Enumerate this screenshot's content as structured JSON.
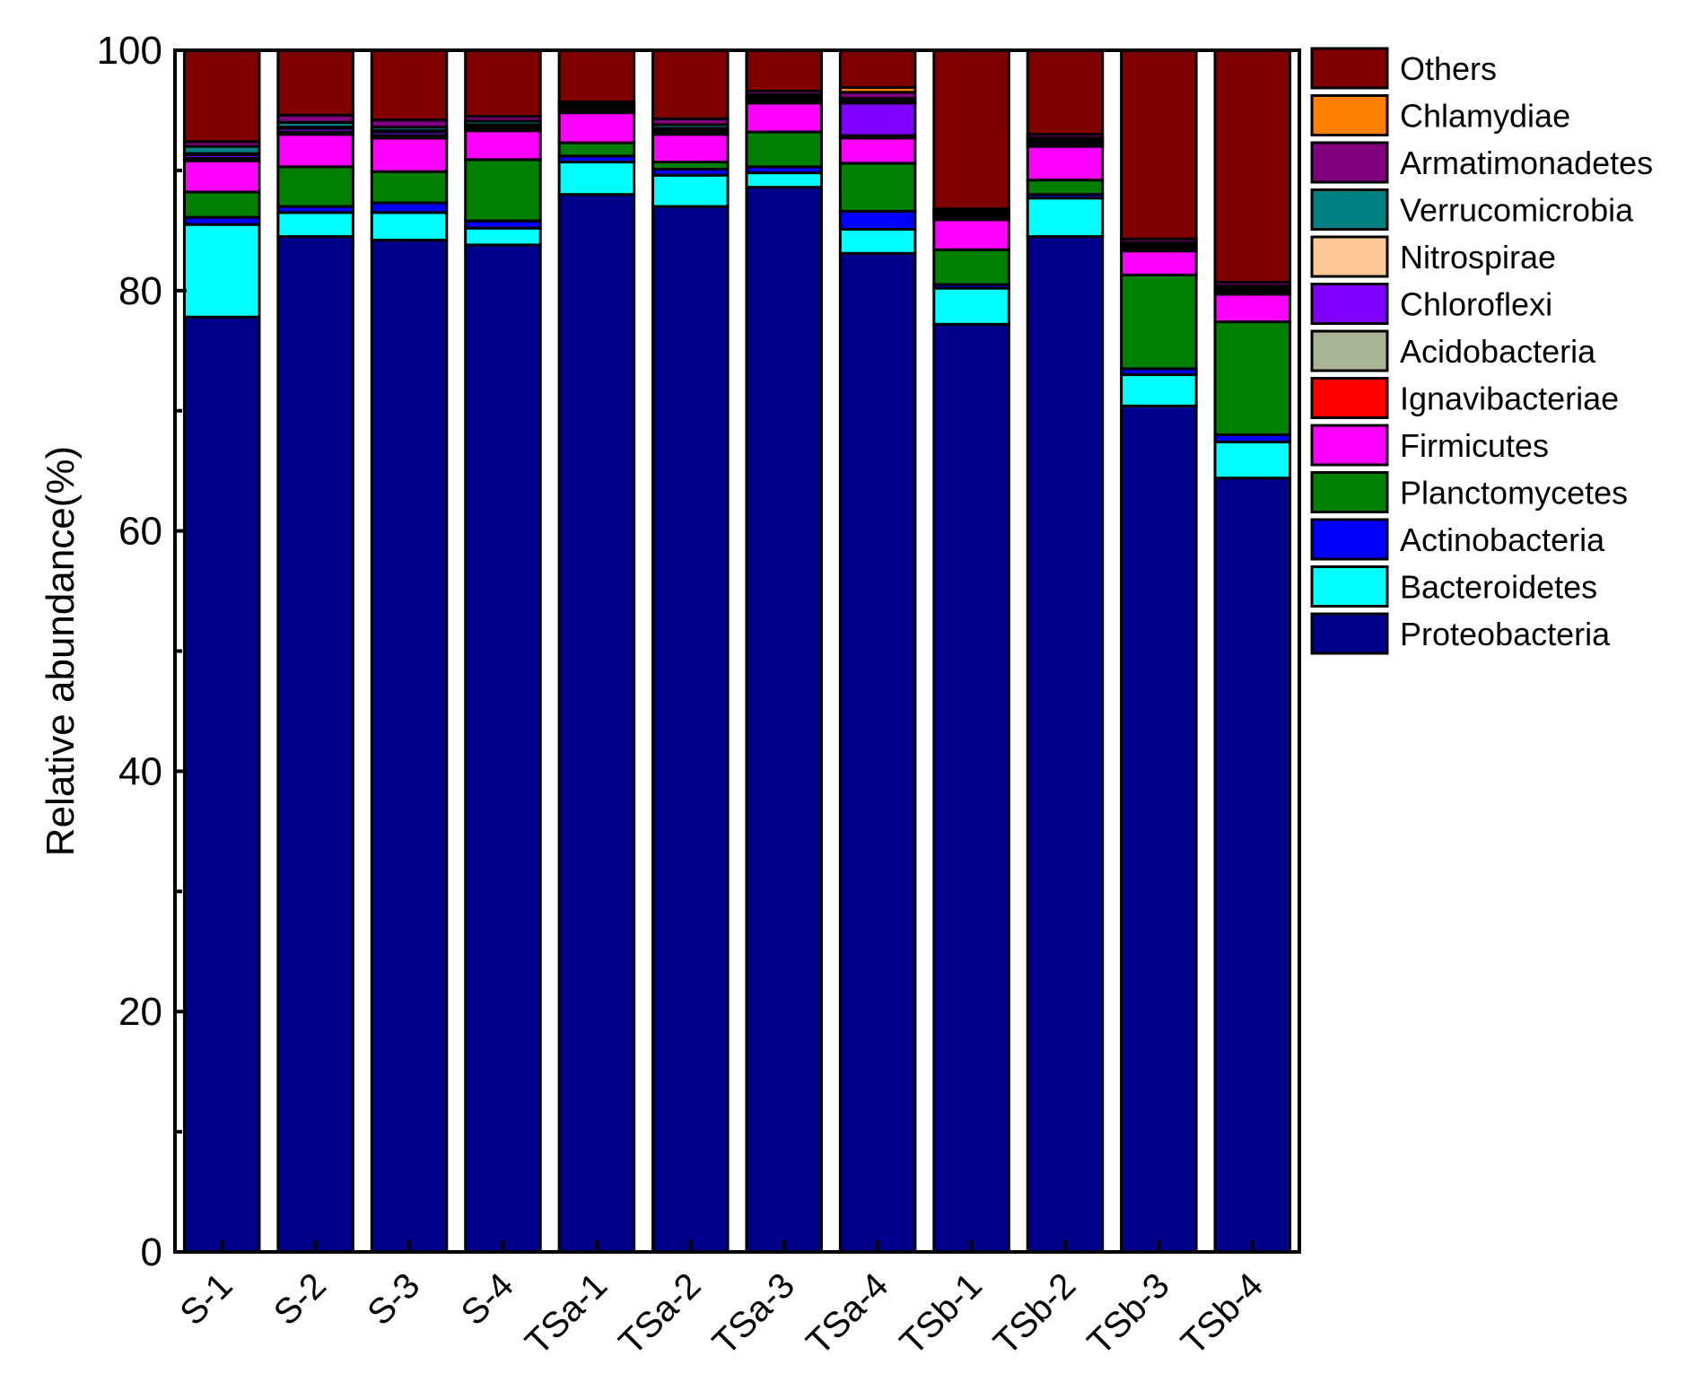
{
  "chart_data": {
    "type": "stacked-bar",
    "title": "",
    "xlabel": "",
    "ylabel": "Relative abundance(%)",
    "ylim": [
      0,
      100
    ],
    "yticks": [
      0,
      20,
      40,
      60,
      80,
      100
    ],
    "grid": false,
    "legend_position": "right",
    "categories": [
      "S-1",
      "S-2",
      "S-3",
      "S-4",
      "TSa-1",
      "TSa-2",
      "TSa-3",
      "TSa-4",
      "TSb-1",
      "TSb-2",
      "TSb-3",
      "TSb-4"
    ],
    "series": [
      {
        "name": "Proteobacteria",
        "color": "#00008B",
        "values": [
          77.8,
          84.5,
          84.2,
          83.8,
          88.0,
          87.0,
          88.6,
          83.1,
          77.2,
          84.5,
          70.4,
          64.4
        ]
      },
      {
        "name": "Bacteroidetes",
        "color": "#00FFFF",
        "values": [
          7.7,
          2.0,
          2.3,
          1.4,
          2.7,
          2.6,
          1.2,
          2.0,
          3.0,
          3.2,
          2.6,
          3.0
        ]
      },
      {
        "name": "Actinobacteria",
        "color": "#0000FF",
        "values": [
          0.6,
          0.5,
          0.8,
          0.6,
          0.5,
          0.5,
          0.5,
          1.5,
          0.3,
          0.3,
          0.5,
          0.6
        ]
      },
      {
        "name": "Planctomycetes",
        "color": "#008000",
        "values": [
          2.1,
          3.3,
          2.6,
          5.1,
          1.1,
          0.6,
          2.9,
          4.0,
          2.9,
          1.2,
          7.8,
          9.4
        ]
      },
      {
        "name": "Firmicutes",
        "color": "#FF00FF",
        "values": [
          2.6,
          2.7,
          2.8,
          2.4,
          2.5,
          2.3,
          2.4,
          2.1,
          2.5,
          2.8,
          2.0,
          2.3
        ]
      },
      {
        "name": "Ignavibacteriae",
        "color": "#FF0000",
        "values": [
          0,
          0,
          0,
          0,
          0,
          0,
          0,
          0,
          0,
          0,
          0,
          0
        ]
      },
      {
        "name": "Acidobacteria",
        "color": "#A9B596",
        "values": [
          0.2,
          0.2,
          0.2,
          0.2,
          0.2,
          0.2,
          0.2,
          0.2,
          0.2,
          0.2,
          0.2,
          0.2
        ]
      },
      {
        "name": "Chloroflexi",
        "color": "#8000FF",
        "values": [
          0.3,
          0.3,
          0.3,
          0.2,
          0.2,
          0.2,
          0.2,
          2.7,
          0.2,
          0.2,
          0.2,
          0.2
        ]
      },
      {
        "name": "Nitrospirae",
        "color": "#FFC896",
        "values": [
          0.1,
          0.1,
          0.1,
          0.1,
          0.1,
          0.1,
          0.1,
          0.2,
          0.1,
          0.1,
          0.1,
          0.1
        ]
      },
      {
        "name": "Verrucomicrobia",
        "color": "#008080",
        "values": [
          0.6,
          0.4,
          0.3,
          0.3,
          0.2,
          0.3,
          0.2,
          0.2,
          0.2,
          0.2,
          0.2,
          0.2
        ]
      },
      {
        "name": "Armatimonadetes",
        "color": "#800080",
        "values": [
          0.4,
          0.6,
          0.6,
          0.4,
          0.2,
          0.5,
          0.3,
          0.5,
          0.2,
          0.3,
          0.3,
          0.3
        ]
      },
      {
        "name": "Chlamydiae",
        "color": "#FF8000",
        "values": [
          0,
          0,
          0,
          0,
          0,
          0,
          0,
          0.4,
          0,
          0,
          0,
          0
        ]
      },
      {
        "name": "Others",
        "color": "#800000",
        "values": [
          7.6,
          5.4,
          5.8,
          5.5,
          4.3,
          5.7,
          3.4,
          3.1,
          13.2,
          7.0,
          15.7,
          19.3
        ]
      }
    ]
  }
}
